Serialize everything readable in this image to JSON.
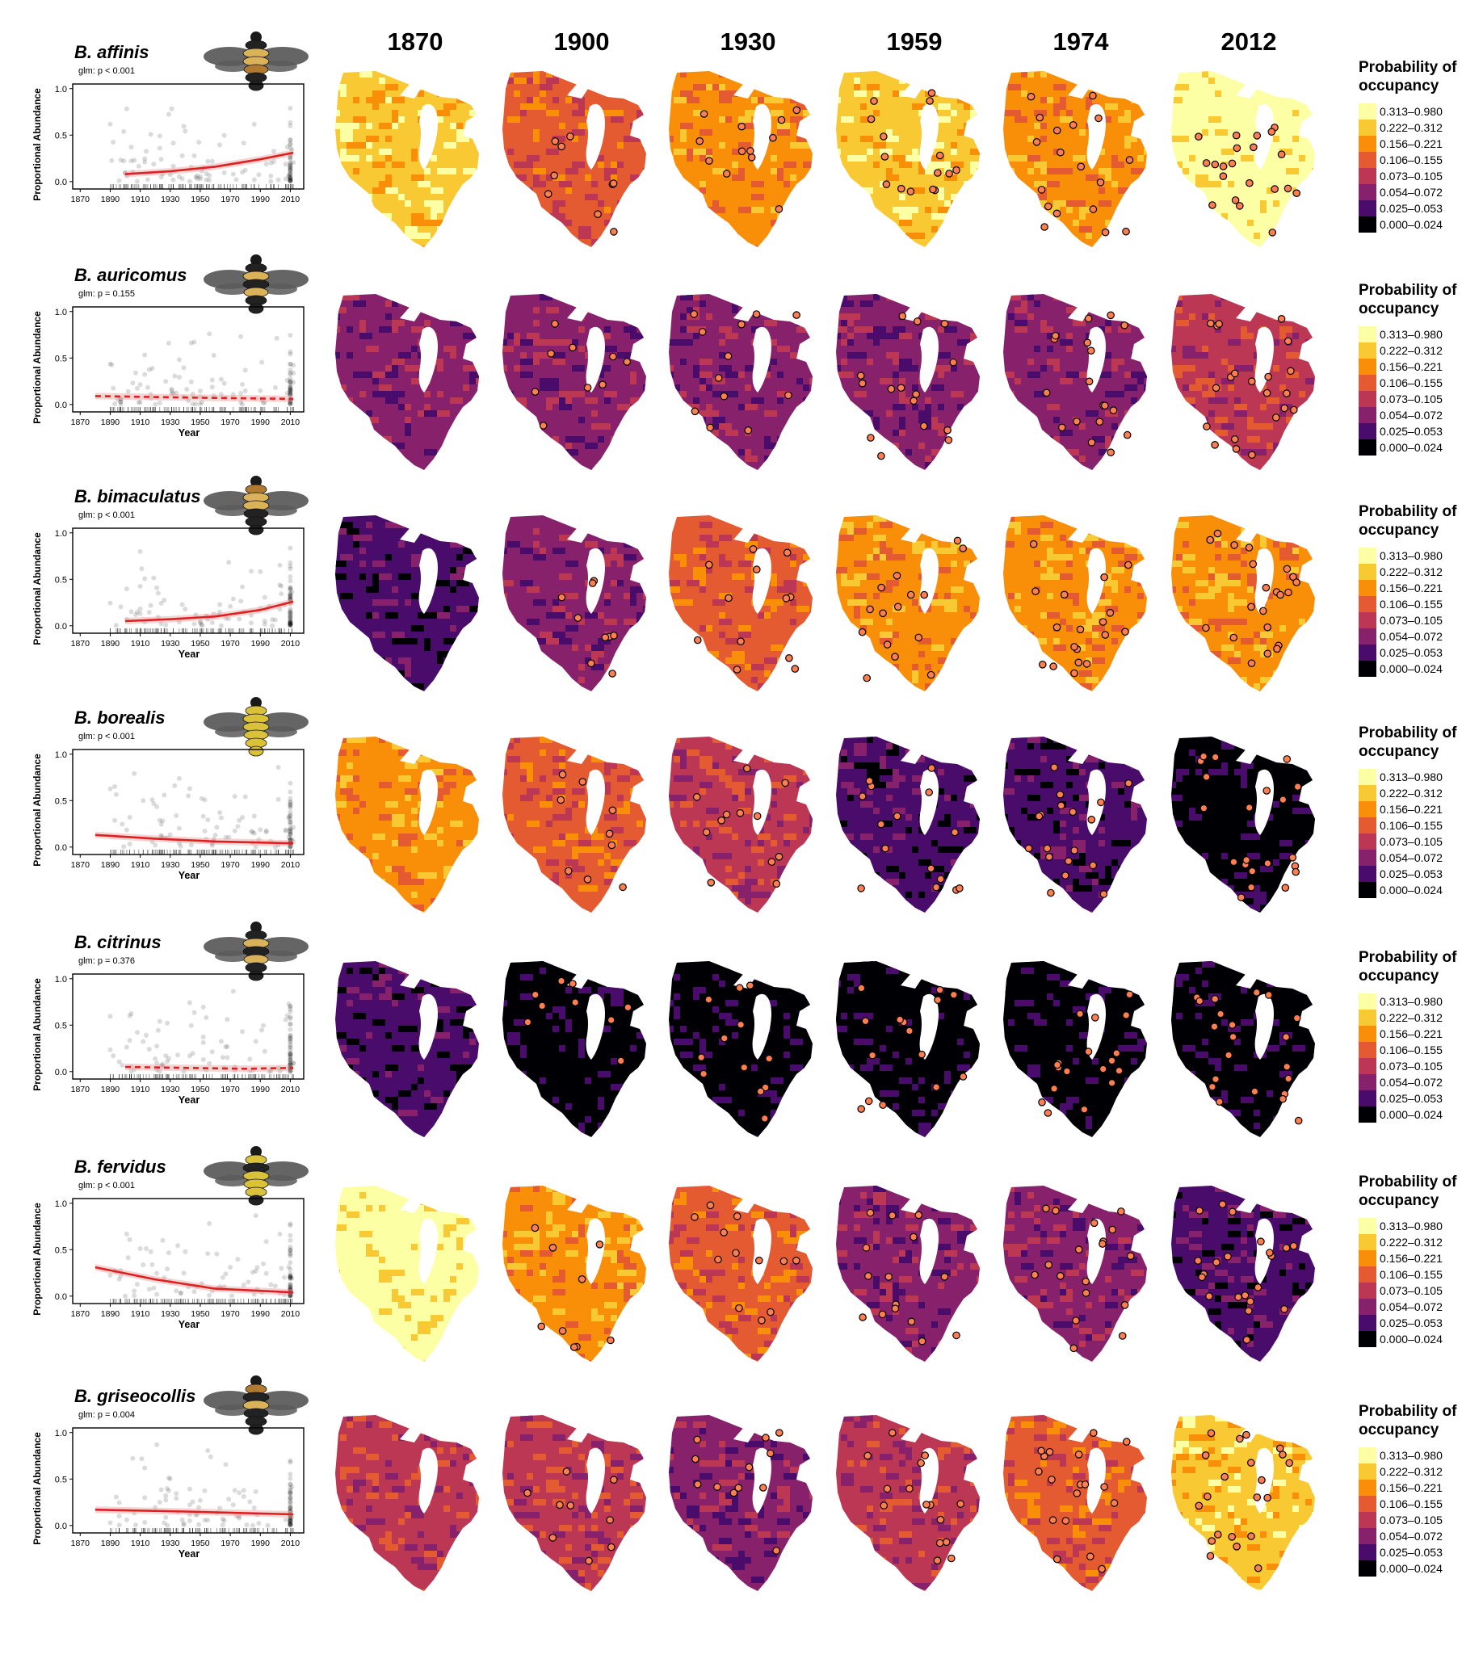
{
  "years": [
    "1870",
    "1900",
    "1930",
    "1959",
    "1974",
    "2012"
  ],
  "legend": {
    "title_line1": "Probability of",
    "title_line2": "occupancy",
    "bins": [
      "0.313–0.980",
      "0.222–0.312",
      "0.156–0.221",
      "0.106–0.155",
      "0.073–0.105",
      "0.054–0.072",
      "0.025–0.053",
      "0.000–0.024"
    ],
    "colors": [
      "#fcffa4",
      "#f8c932",
      "#f98e09",
      "#e45a31",
      "#bc3754",
      "#87216b",
      "#4a0c6b",
      "#000004"
    ]
  },
  "axis": {
    "ylabel": "Proportional Abundance",
    "xlabel": "Year",
    "yticks": [
      "0.0",
      "0.5",
      "1.0"
    ],
    "xticks": [
      "1870",
      "1890",
      "1910",
      "1930",
      "1950",
      "1970",
      "1990",
      "2010"
    ]
  },
  "chart_data": [
    {
      "species": "B. affinis",
      "glm": "glm: p < 0.001",
      "show_xlabel": false,
      "bee_colors": [
        "#222222",
        "#d9b25a",
        "#d9b25a",
        "#b07a30",
        "#222222",
        "#222222"
      ],
      "type": "scatter",
      "trend": {
        "x": [
          1900,
          1930,
          1960,
          1990,
          2012
        ],
        "y": [
          0.08,
          0.11,
          0.16,
          0.24,
          0.31
        ],
        "dashed": false
      },
      "map_bins": [
        1,
        3,
        2,
        1,
        2,
        0
      ]
    },
    {
      "species": "B. auricomus",
      "glm": "glm: p = 0.155",
      "show_xlabel": true,
      "bee_colors": [
        "#222222",
        "#d9b25a",
        "#222222",
        "#d9b25a",
        "#222222",
        "#222222"
      ],
      "type": "scatter",
      "trend": {
        "x": [
          1880,
          1920,
          1960,
          2012
        ],
        "y": [
          0.09,
          0.08,
          0.07,
          0.06
        ],
        "dashed": true
      },
      "map_bins": [
        5,
        5,
        5,
        5,
        5,
        4
      ]
    },
    {
      "species": "B. bimaculatus",
      "glm": "glm: p < 0.001",
      "show_xlabel": true,
      "bee_colors": [
        "#b07a30",
        "#d9b25a",
        "#d9b25a",
        "#222222",
        "#222222",
        "#222222"
      ],
      "type": "scatter",
      "trend": {
        "x": [
          1900,
          1930,
          1960,
          1990,
          2012
        ],
        "y": [
          0.05,
          0.07,
          0.1,
          0.17,
          0.26
        ],
        "dashed": false
      },
      "map_bins": [
        6,
        5,
        3,
        2,
        2,
        2
      ]
    },
    {
      "species": "B. borealis",
      "glm": "glm: p < 0.001",
      "show_xlabel": true,
      "bee_colors": [
        "#d9c23a",
        "#d9c23a",
        "#d9c23a",
        "#d9c23a",
        "#d9c23a",
        "#d9c23a"
      ],
      "type": "scatter",
      "trend": {
        "x": [
          1880,
          1920,
          1960,
          2012
        ],
        "y": [
          0.13,
          0.09,
          0.06,
          0.04
        ],
        "dashed": false
      },
      "map_bins": [
        2,
        3,
        4,
        6,
        6,
        7
      ]
    },
    {
      "species": "B. citrinus",
      "glm": "glm: p = 0.376",
      "show_xlabel": true,
      "bee_colors": [
        "#222222",
        "#d9b25a",
        "#222222",
        "#d9b25a",
        "#222222",
        "#222222"
      ],
      "type": "scatter",
      "trend": {
        "x": [
          1900,
          1940,
          1980,
          2012
        ],
        "y": [
          0.05,
          0.04,
          0.03,
          0.04
        ],
        "dashed": true
      },
      "map_bins": [
        6,
        7,
        7,
        7,
        7,
        7
      ]
    },
    {
      "species": "B. fervidus",
      "glm": "glm: p < 0.001",
      "show_xlabel": true,
      "bee_colors": [
        "#d9c23a",
        "#222222",
        "#d9c23a",
        "#d9c23a",
        "#d9c23a",
        "#222222"
      ],
      "type": "scatter",
      "trend": {
        "x": [
          1880,
          1920,
          1960,
          2012
        ],
        "y": [
          0.31,
          0.18,
          0.08,
          0.04
        ],
        "dashed": false
      },
      "map_bins": [
        0,
        2,
        3,
        5,
        5,
        6
      ]
    },
    {
      "species": "B. griseocollis",
      "glm": "glm: p = 0.004",
      "show_xlabel": true,
      "bee_colors": [
        "#b07a30",
        "#222222",
        "#d9b25a",
        "#222222",
        "#222222",
        "#222222"
      ],
      "type": "scatter",
      "trend": {
        "x": [
          1880,
          1940,
          2012
        ],
        "y": [
          0.17,
          0.15,
          0.12
        ],
        "dashed": false
      },
      "map_bins": [
        4,
        4,
        5,
        4,
        3,
        1
      ]
    }
  ]
}
